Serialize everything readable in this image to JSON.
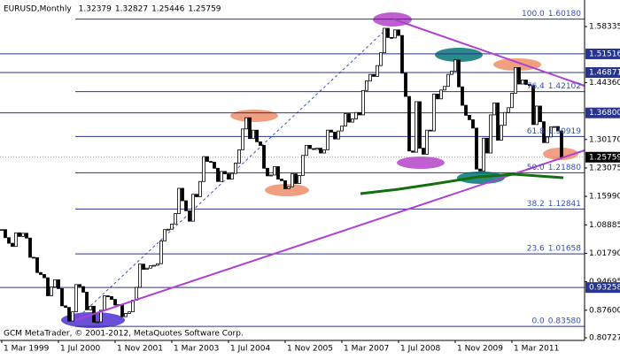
{
  "header": {
    "symbol": "EURUSD,Monthly",
    "ohlc": [
      1.32379,
      1.32827,
      1.25446,
      1.25759
    ]
  },
  "copyright": "GCM MetaTrader, © 2001-2012, MetaQuotes Software Corp.",
  "chart_data": {
    "type": "candlestick",
    "categories": [
      "1 Mar 1999",
      null,
      null,
      null,
      null,
      null,
      null,
      null,
      null,
      null,
      null,
      null,
      null,
      null,
      null,
      null,
      "1 Jul 2000",
      null,
      null,
      null,
      null,
      null,
      null,
      null,
      null,
      null,
      null,
      null,
      null,
      null,
      null,
      null,
      "1 Nov 2001",
      null,
      null,
      null,
      null,
      null,
      null,
      null,
      null,
      null,
      null,
      null,
      null,
      null,
      null,
      null,
      "1 Mar 2003",
      null,
      null,
      null,
      null,
      null,
      null,
      null,
      null,
      null,
      null,
      null,
      null,
      null,
      null,
      null,
      "1 Jul 2004",
      null,
      null,
      null,
      null,
      null,
      null,
      null,
      null,
      null,
      null,
      null,
      null,
      null,
      null,
      null,
      "1 Nov 2005",
      null,
      null,
      null,
      null,
      null,
      null,
      null,
      null,
      null,
      null,
      null,
      null,
      null,
      null,
      null,
      "1 Mar 2007",
      null,
      null,
      null,
      null,
      null,
      null,
      null,
      null,
      null,
      null,
      null,
      null,
      null,
      null,
      null,
      "1 Jul 2008",
      null,
      null,
      null,
      null,
      null,
      null,
      null,
      null,
      null,
      null,
      null,
      null,
      null,
      null,
      null,
      "1 Nov 2009",
      null,
      null,
      null,
      null,
      null,
      null,
      null,
      null,
      null,
      null,
      null,
      null,
      null,
      null,
      null,
      "1 Mar 2011",
      null,
      null,
      null,
      null,
      null,
      null,
      null,
      null,
      null,
      null,
      null,
      null,
      null,
      null
    ],
    "values": [
      1.077,
      1.057,
      1.043,
      1.035,
      1.069,
      1.06,
      1.068,
      1.056,
      1.008,
      1.007,
      0.97,
      0.965,
      0.957,
      0.912,
      0.934,
      0.952,
      0.93,
      0.887,
      0.883,
      0.849,
      0.872,
      0.94,
      0.935,
      0.921,
      0.877,
      0.886,
      0.846,
      0.847,
      0.876,
      0.912,
      0.91,
      0.903,
      0.889,
      0.89,
      0.86,
      0.868,
      0.872,
      0.901,
      0.933,
      0.991,
      0.978,
      0.981,
      0.987,
      0.988,
      0.992,
      1.049,
      1.077,
      1.078,
      1.091,
      1.117,
      1.18,
      1.149,
      1.124,
      1.098,
      1.165,
      1.159,
      1.197,
      1.259,
      1.247,
      1.245,
      1.23,
      1.197,
      1.222,
      1.216,
      1.203,
      1.217,
      1.243,
      1.276,
      1.328,
      1.356,
      1.304,
      1.325,
      1.296,
      1.287,
      1.23,
      1.211,
      1.213,
      1.234,
      1.203,
      1.199,
      1.179,
      1.184,
      1.216,
      1.192,
      1.212,
      1.262,
      1.287,
      1.279,
      1.277,
      1.28,
      1.268,
      1.276,
      1.325,
      1.32,
      1.303,
      1.323,
      1.335,
      1.366,
      1.345,
      1.353,
      1.369,
      1.363,
      1.424,
      1.448,
      1.464,
      1.459,
      1.486,
      1.518,
      1.579,
      1.556,
      1.555,
      1.575,
      1.561,
      1.467,
      1.409,
      1.273,
      1.27,
      1.396,
      1.28,
      1.265,
      1.325,
      1.323,
      1.415,
      1.403,
      1.425,
      1.434,
      1.464,
      1.472,
      1.5,
      1.433,
      1.387,
      1.362,
      1.351,
      1.33,
      1.228,
      1.223,
      1.305,
      1.268,
      1.363,
      1.393,
      1.3,
      1.337,
      1.369,
      1.381,
      1.417,
      1.481,
      1.44,
      1.45,
      1.439,
      1.436,
      1.339,
      1.385,
      1.346,
      1.294,
      1.308,
      1.333,
      1.334,
      1.323,
      1.25759
    ],
    "up_color": "#ffffff",
    "down_color": "#000000",
    "ylim": [
      0.8007,
      1.6495
    ],
    "yticks": [
      1.58335,
      {
        "value": 1.4436,
        "label": "1.44360"
      },
      {
        "value": 1.3017,
        "label": "1.30170"
      },
      1.23075,
      {
        "value": 1.1599,
        "label": "1.15990"
      },
      1.08885,
      {
        "value": 1.0179,
        "label": "1.01790"
      },
      0.94695,
      {
        "value": 0.876,
        "label": "0.87600"
      },
      0.80727
    ],
    "levels": [
      1.51516,
      1.46871,
      {
        "value": 1.368,
        "label": "1.36800"
      },
      0.93258
    ],
    "current": 1.25759,
    "fib": [
      {
        "ratio": "100.0",
        "price": {
          "value": 1.6018,
          "label": "1.60180"
        }
      },
      {
        "ratio": "76.4",
        "price": 1.42102
      },
      {
        "ratio": "61.8",
        "price": 1.30919
      },
      {
        "ratio": "50.0",
        "price": {
          "value": 1.2188,
          "label": "1.21880"
        }
      },
      {
        "ratio": "38.2",
        "price": 1.12841
      },
      {
        "ratio": "23.6",
        "price": 1.01658
      },
      {
        "ratio": "0.0",
        "price": {
          "value": 0.8358,
          "label": "0.83580"
        }
      }
    ],
    "fib_color": "#27358f"
  }
}
